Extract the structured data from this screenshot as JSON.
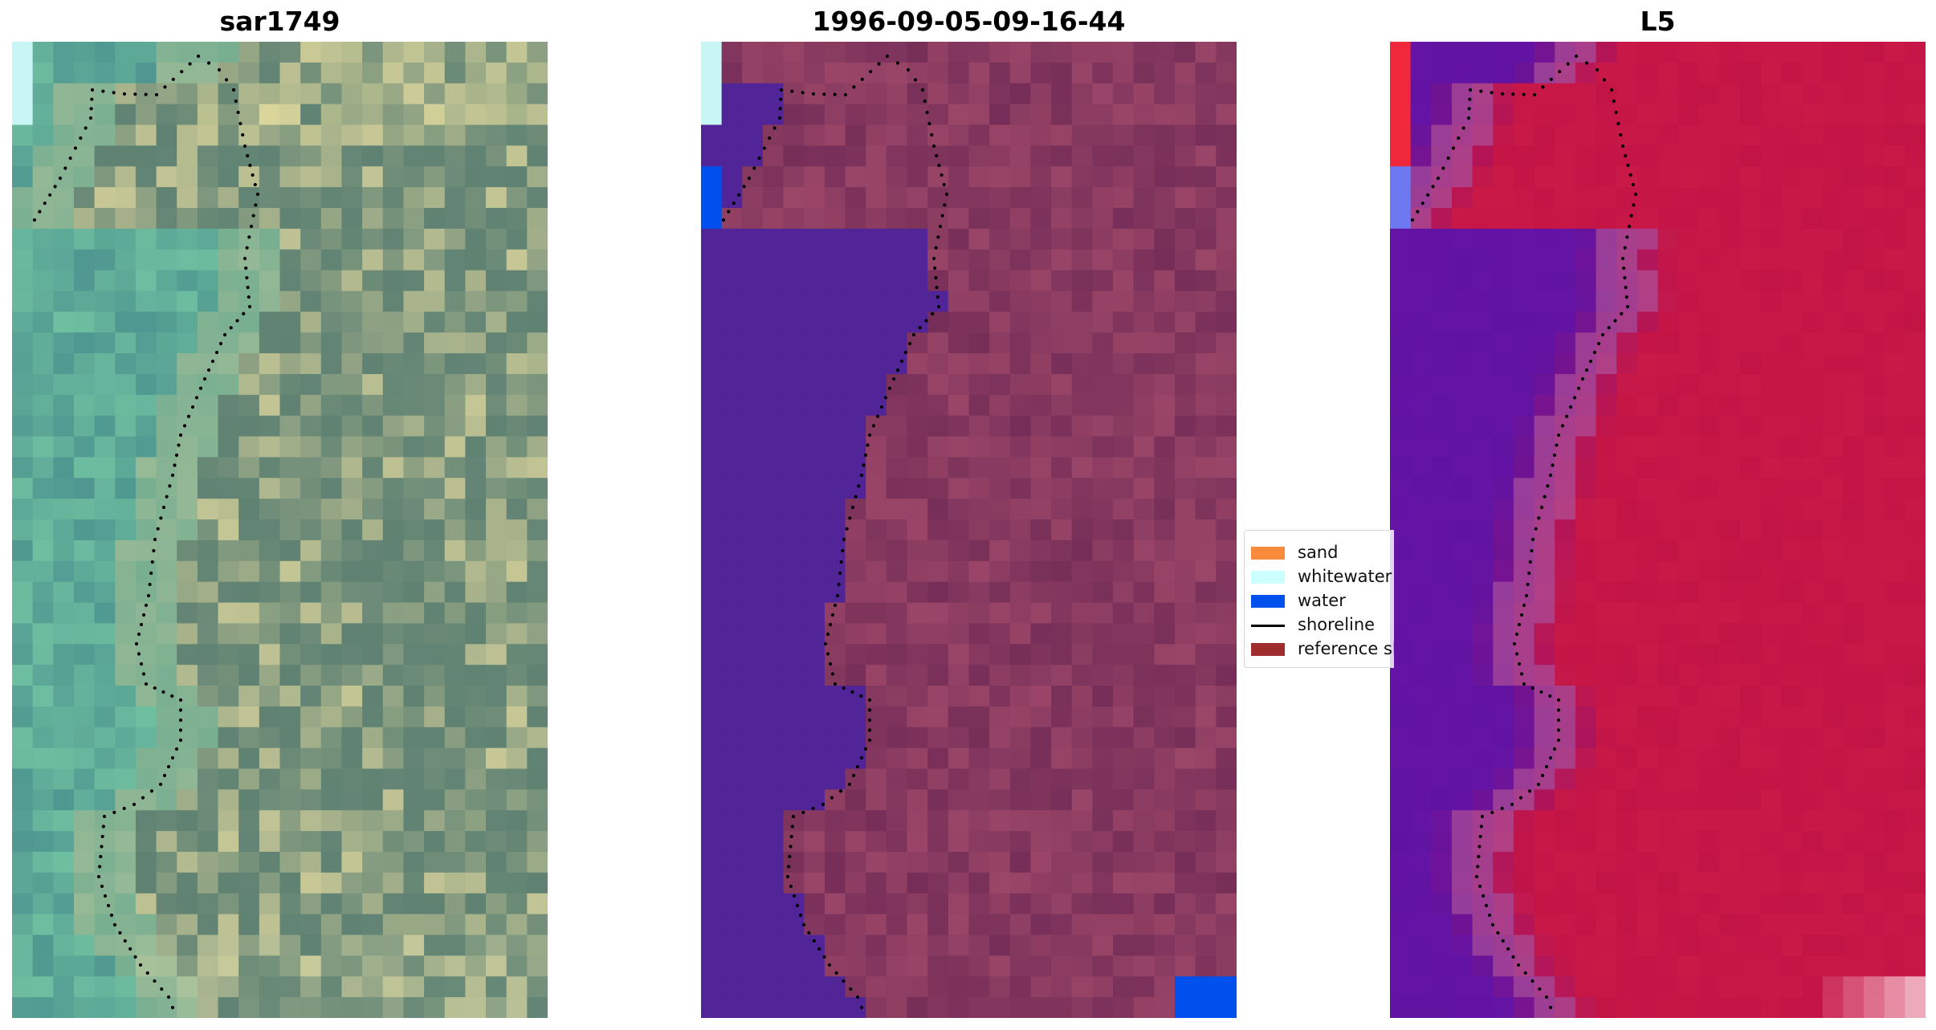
{
  "panels": [
    {
      "title": "sar1749",
      "image": "true-colour satellite image tile with dotted shoreline overlay"
    },
    {
      "title": "1996-09-05-09-16-44",
      "image": "classified image with water class overlay and dotted shoreline"
    },
    {
      "title": "L5",
      "image": "index image (blue-to-red colour map) with dotted shoreline overlay"
    }
  ],
  "legend": {
    "items": [
      {
        "label": "sand",
        "color": "#f98c3c",
        "kind": "patch"
      },
      {
        "label": "whitewater",
        "color": "#ccffff",
        "kind": "patch"
      },
      {
        "label": "water",
        "color": "#0050ee",
        "kind": "patch"
      },
      {
        "label": "shoreline",
        "color": "#000000",
        "kind": "line"
      },
      {
        "label": "reference shoreline",
        "color": "#a02d2d",
        "kind": "patch"
      }
    ]
  },
  "colors": {
    "water_class": "#512598",
    "land_overlay": "#7a2e58",
    "index_water": "#6a1aa0",
    "index_land": "#c0174b"
  }
}
